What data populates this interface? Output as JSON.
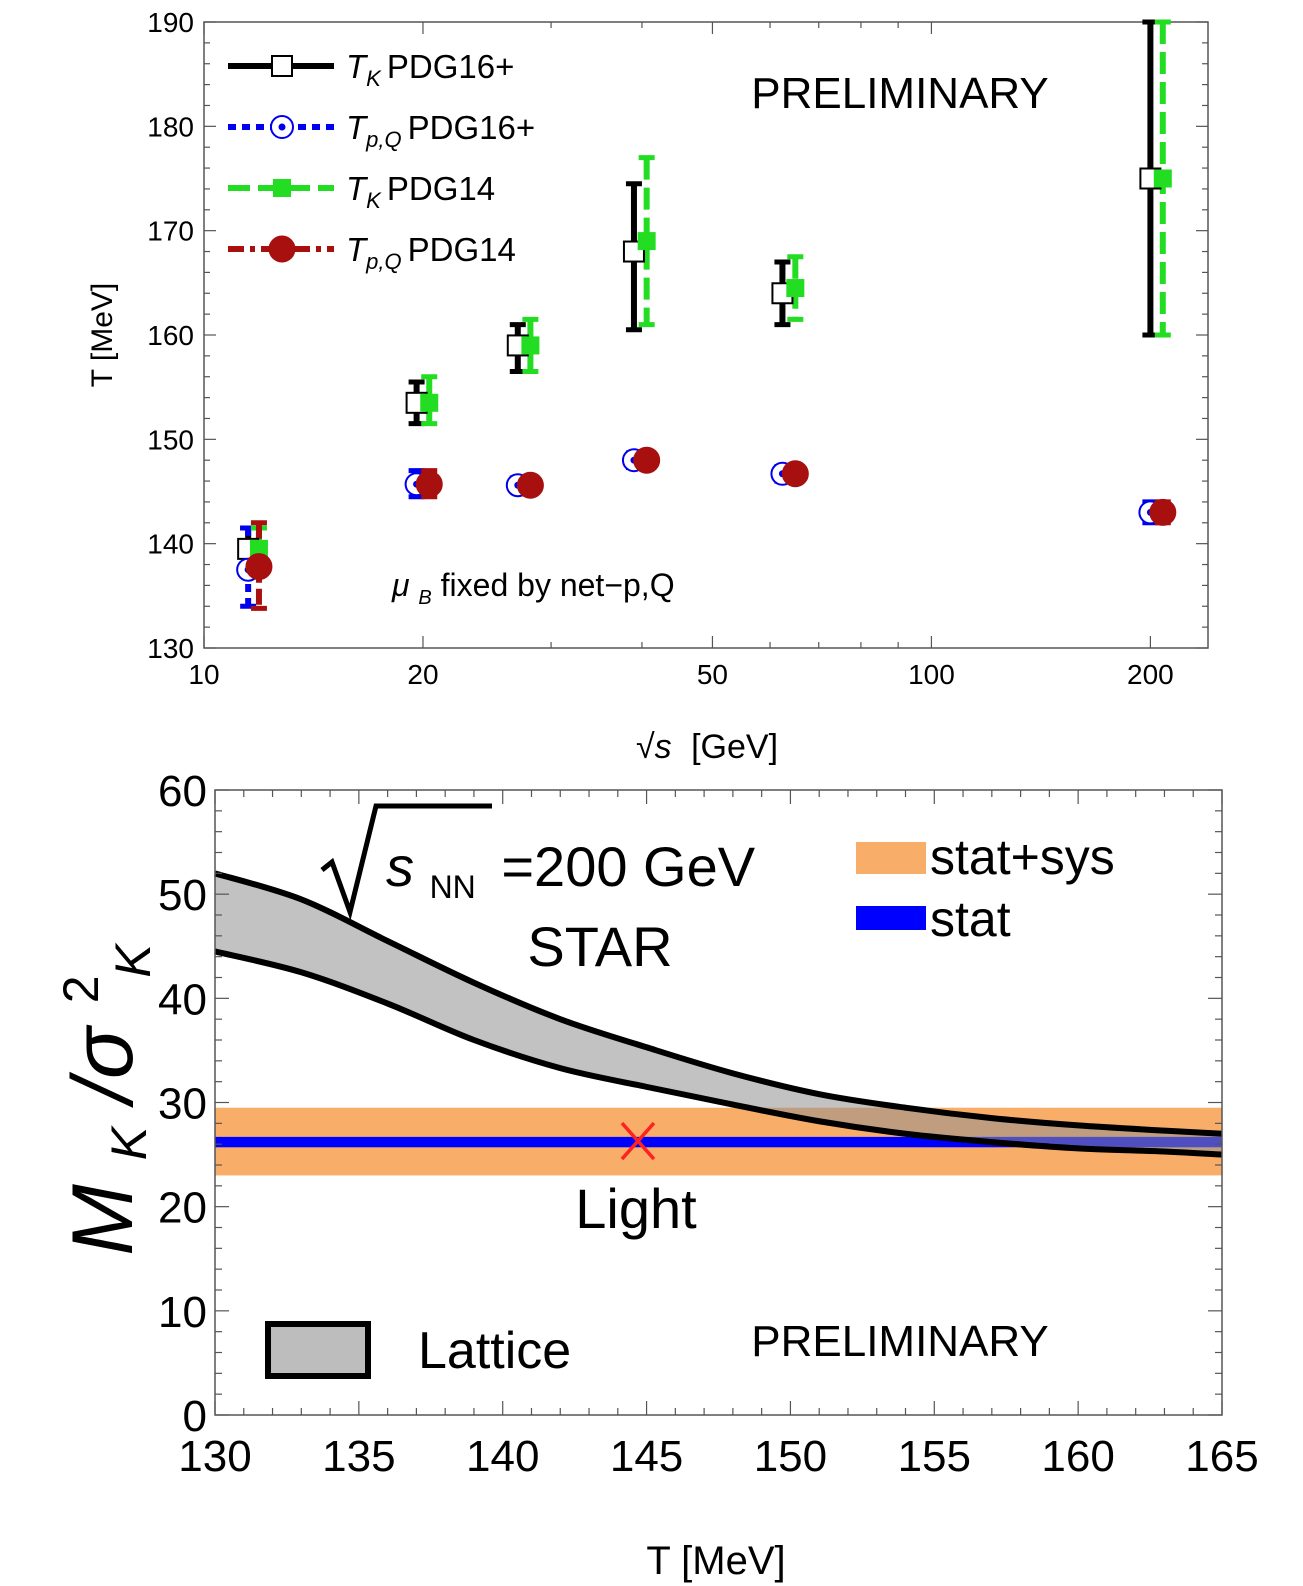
{
  "chart_data": [
    {
      "type": "scatter",
      "xscale": "log",
      "xlim": [
        10,
        240
      ],
      "ylim": [
        130,
        190
      ],
      "xticks": [
        10,
        20,
        50,
        100,
        200
      ],
      "yticks": [
        130,
        140,
        150,
        160,
        170,
        180,
        190
      ],
      "xlabel_main": "√s",
      "xlabel_unit": "[GeV]",
      "ylabel": "T [MeV]",
      "annotation": "PRELIMINARY",
      "note_sym": "μ",
      "note_sub": "B",
      "note_rest": " fixed by net−p,Q",
      "series": [
        {
          "name": "PDG16+",
          "sym": "T",
          "sub": "K",
          "marker": "square-open",
          "line": "solid",
          "color": "#000000",
          "points": [
            {
              "x": 11.5,
              "y": 139.5,
              "lo": 137.5,
              "hi": 141.5
            },
            {
              "x": 19.6,
              "y": 153.5,
              "lo": 151.5,
              "hi": 155.5
            },
            {
              "x": 27,
              "y": 159,
              "lo": 156.5,
              "hi": 161
            },
            {
              "x": 39,
              "y": 168,
              "lo": 160.5,
              "hi": 174.5
            },
            {
              "x": 62.4,
              "y": 164,
              "lo": 161,
              "hi": 167
            },
            {
              "x": 200,
              "y": 175,
              "lo": 160,
              "hi": 190
            }
          ]
        },
        {
          "name": "PDG16+",
          "sym": "T",
          "sub": "p,Q",
          "marker": "circle-open",
          "line": "dashed",
          "color": "#0000ee",
          "points": [
            {
              "x": 11.5,
              "y": 137.5,
              "lo": 134,
              "hi": 141.5
            },
            {
              "x": 19.6,
              "y": 145.7,
              "lo": 144.5,
              "hi": 147
            },
            {
              "x": 27,
              "y": 145.6,
              "lo": 145,
              "hi": 146.3
            },
            {
              "x": 39,
              "y": 148,
              "lo": 147.3,
              "hi": 148.7
            },
            {
              "x": 62.4,
              "y": 146.7,
              "lo": 146,
              "hi": 147.4
            },
            {
              "x": 200,
              "y": 143,
              "lo": 142,
              "hi": 144
            }
          ]
        },
        {
          "name": "PDG14",
          "sym": "T",
          "sub": "K",
          "marker": "square-filled",
          "line": "longdash",
          "color": "#22dd22",
          "points": [
            {
              "x": 11.9,
              "y": 139.5,
              "lo": 137.5,
              "hi": 141.5
            },
            {
              "x": 20.4,
              "y": 153.5,
              "lo": 151.5,
              "hi": 156
            },
            {
              "x": 28.1,
              "y": 159,
              "lo": 156.5,
              "hi": 161.5
            },
            {
              "x": 40.6,
              "y": 169,
              "lo": 161,
              "hi": 177
            },
            {
              "x": 65,
              "y": 164.5,
              "lo": 161.5,
              "hi": 167.5
            },
            {
              "x": 208,
              "y": 175,
              "lo": 160,
              "hi": 190
            }
          ]
        },
        {
          "name": "PDG14",
          "sym": "T",
          "sub": "p,Q",
          "marker": "circle-filled",
          "line": "dashdot",
          "color": "#a80f0f",
          "points": [
            {
              "x": 11.9,
              "y": 137.8,
              "lo": 133.8,
              "hi": 142
            },
            {
              "x": 20.4,
              "y": 145.7,
              "lo": 144.5,
              "hi": 147
            },
            {
              "x": 28.1,
              "y": 145.6,
              "lo": 145,
              "hi": 146.3
            },
            {
              "x": 40.6,
              "y": 148,
              "lo": 147.3,
              "hi": 148.7
            },
            {
              "x": 65,
              "y": 146.7,
              "lo": 146,
              "hi": 147.4
            },
            {
              "x": 208,
              "y": 143,
              "lo": 142,
              "hi": 144
            }
          ]
        }
      ]
    },
    {
      "type": "area",
      "xlim": [
        130,
        165
      ],
      "ylim": [
        0,
        60
      ],
      "xticks": [
        130,
        135,
        140,
        145,
        150,
        155,
        160,
        165
      ],
      "yticks": [
        0,
        10,
        20,
        30,
        40,
        50,
        60
      ],
      "xlabel": "T [MeV]",
      "ylabel_main": "M",
      "ylabel_sub": "K",
      "ylabel_slash": "/σ",
      "ylabel_sup": "2",
      "ylabel_sub2": "K",
      "energy_label": "s",
      "energy_sub": "NN",
      "energy_value": "=200 GeV",
      "experiment_label": "STAR",
      "light_label": "Light",
      "annotation": "PRELIMINARY",
      "lattice": {
        "name": "Lattice",
        "upper": [
          [
            130,
            52
          ],
          [
            133,
            49.5
          ],
          [
            136,
            45.5
          ],
          [
            139,
            41.5
          ],
          [
            142,
            38
          ],
          [
            145,
            35.3
          ],
          [
            148,
            32.8
          ],
          [
            151,
            30.8
          ],
          [
            154,
            29.5
          ],
          [
            157,
            28.5
          ],
          [
            160,
            27.8
          ],
          [
            163,
            27.3
          ],
          [
            165,
            27
          ]
        ],
        "lower": [
          [
            130,
            44.5
          ],
          [
            133,
            42.5
          ],
          [
            136,
            39.5
          ],
          [
            139,
            36
          ],
          [
            142,
            33.3
          ],
          [
            145,
            31.5
          ],
          [
            148,
            29.8
          ],
          [
            151,
            28.2
          ],
          [
            154,
            27
          ],
          [
            157,
            26.2
          ],
          [
            160,
            25.6
          ],
          [
            163,
            25.3
          ],
          [
            165,
            25
          ]
        ]
      },
      "bands": [
        {
          "name": "stat+sys",
          "lo": 23,
          "hi": 29.5,
          "color": "#f8ad68"
        },
        {
          "name": "stat",
          "lo": 25.7,
          "hi": 26.7,
          "color": "#0000ff"
        }
      ],
      "marker": {
        "x": 144.7,
        "y": 26.3,
        "symbol": "X",
        "color": "#ff2222"
      }
    }
  ]
}
